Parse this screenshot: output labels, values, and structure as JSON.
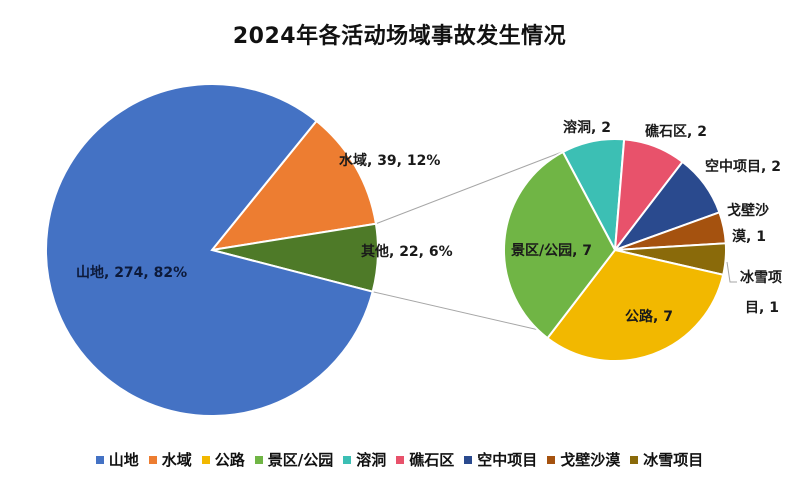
{
  "chart_data": {
    "type": "pie",
    "title": "2024年各活动场域事故发生情况",
    "subtype": "pie-of-pie",
    "main_pie": {
      "categories": [
        "山地",
        "水域",
        "其他"
      ],
      "values": [
        274,
        39,
        22
      ],
      "percentages": [
        "82%",
        "12%",
        "6%"
      ],
      "colors": [
        "#4472C4",
        "#ED7D31",
        "#4E7A28"
      ],
      "labels": [
        "山地, 274, 82%",
        "水域, 39, 12%",
        "其他, 22, 6%"
      ]
    },
    "secondary_pie": {
      "parent": "其他",
      "categories": [
        "溶洞",
        "礁石区",
        "空中项目",
        "戈壁沙漠",
        "冰雪项目",
        "公路",
        "景区/公园"
      ],
      "values": [
        2,
        2,
        2,
        1,
        1,
        7,
        7
      ],
      "colors": [
        "#3CBFB4",
        "#E8526B",
        "#2A4A8E",
        "#A5520F",
        "#8A6A0A",
        "#F2B800",
        "#70B545"
      ],
      "labels": [
        "溶洞, 2",
        "礁石区, 2",
        "空中项目, 2",
        "戈壁沙漠, 1",
        "冰雪项目, 1",
        "公路, 7",
        "景区/公园, 7"
      ]
    },
    "legend": {
      "position": "bottom",
      "entries": [
        "山地",
        "水域",
        "公路",
        "景区/公园",
        "溶洞",
        "礁石区",
        "空中项目",
        "戈壁沙漠",
        "冰雪项目"
      ],
      "colors": [
        "#4472C4",
        "#ED7D31",
        "#F2B800",
        "#70B545",
        "#3CBFB4",
        "#E8526B",
        "#2A4A8E",
        "#A5520F",
        "#8A6A0A"
      ]
    }
  },
  "labels": {
    "shandi": "山地, 274, 82%",
    "shuiyu": "水域, 39, 12%",
    "qita": "其他, 22, 6%",
    "rongdong": "溶洞, 2",
    "jiaoshi": "礁石区, 2",
    "kongzhong": "空中项目, 2",
    "gebi_1": "戈壁沙",
    "gebi_2": "漠, 1",
    "bingxue_1": "冰雪项",
    "bingxue_2": "目, 1",
    "gonglu": "公路, 7",
    "jingqu": "景区/公园, 7"
  }
}
